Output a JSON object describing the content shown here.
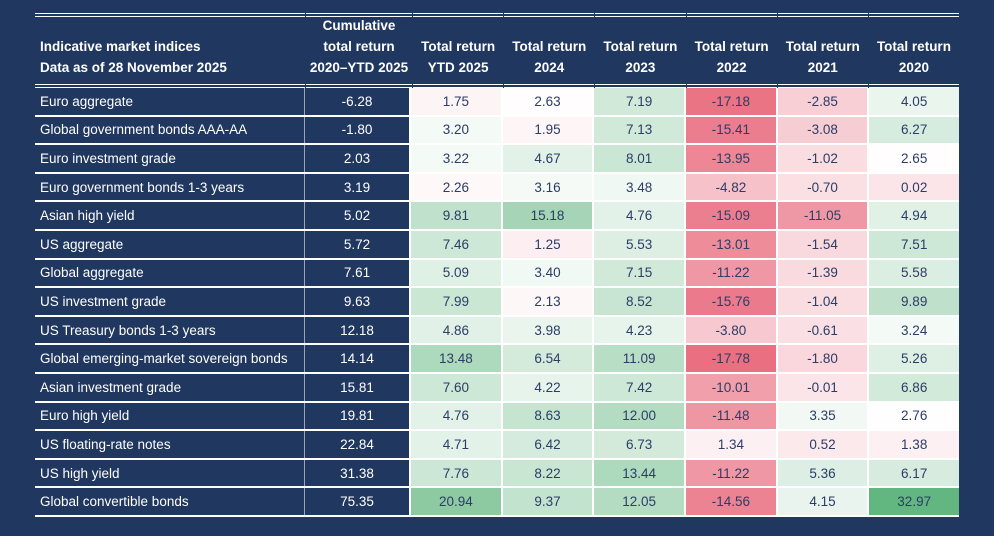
{
  "header": {
    "rowhead_line1": "Indicative market indices",
    "rowhead_line2": "Data as of 28 November 2025",
    "value_columns": [
      {
        "lines": [
          "Cumulative",
          "total return",
          "2020–YTD 2025"
        ]
      },
      {
        "lines": [
          "Total return",
          "YTD 2025"
        ]
      },
      {
        "lines": [
          "Total return",
          "2024"
        ]
      },
      {
        "lines": [
          "Total return",
          "2023"
        ]
      },
      {
        "lines": [
          "Total return",
          "2022"
        ]
      },
      {
        "lines": [
          "Total return",
          "2021"
        ]
      },
      {
        "lines": [
          "Total return",
          "2020"
        ]
      }
    ]
  },
  "rows": [
    {
      "label": "Euro aggregate",
      "cumulative": "-6.28",
      "returns": [
        "1.75",
        "2.63",
        "7.19",
        "-17.18",
        "-2.85",
        "4.05"
      ]
    },
    {
      "label": "Global government bonds AAA-AA",
      "cumulative": "-1.80",
      "returns": [
        "3.20",
        "1.95",
        "7.13",
        "-15.41",
        "-3.08",
        "6.27"
      ]
    },
    {
      "label": "Euro investment grade",
      "cumulative": "2.03",
      "returns": [
        "3.22",
        "4.67",
        "8.01",
        "-13.95",
        "-1.02",
        "2.65"
      ]
    },
    {
      "label": "Euro government bonds 1-3 years",
      "cumulative": "3.19",
      "returns": [
        "2.26",
        "3.16",
        "3.48",
        "-4.82",
        "-0.70",
        "0.02"
      ]
    },
    {
      "label": "Asian high yield",
      "cumulative": "5.02",
      "returns": [
        "9.81",
        "15.18",
        "4.76",
        "-15.09",
        "-11.05",
        "4.94"
      ]
    },
    {
      "label": "US aggregate",
      "cumulative": "5.72",
      "returns": [
        "7.46",
        "1.25",
        "5.53",
        "-13.01",
        "-1.54",
        "7.51"
      ]
    },
    {
      "label": "Global aggregate",
      "cumulative": "7.61",
      "returns": [
        "5.09",
        "3.40",
        "7.15",
        "-11.22",
        "-1.39",
        "5.58"
      ]
    },
    {
      "label": "US investment grade",
      "cumulative": "9.63",
      "returns": [
        "7.99",
        "2.13",
        "8.52",
        "-15.76",
        "-1.04",
        "9.89"
      ]
    },
    {
      "label": "US Treasury bonds 1-3 years",
      "cumulative": "12.18",
      "returns": [
        "4.86",
        "3.98",
        "4.23",
        "-3.80",
        "-0.61",
        "3.24"
      ]
    },
    {
      "label": "Global emerging-market sovereign bonds",
      "cumulative": "14.14",
      "returns": [
        "13.48",
        "6.54",
        "11.09",
        "-17.78",
        "-1.80",
        "5.26"
      ]
    },
    {
      "label": "Asian investment grade",
      "cumulative": "15.81",
      "returns": [
        "7.60",
        "4.22",
        "7.42",
        "-10.01",
        "-0.01",
        "6.86"
      ]
    },
    {
      "label": "Euro high yield",
      "cumulative": "19.81",
      "returns": [
        "4.76",
        "8.63",
        "12.00",
        "-11.48",
        "3.35",
        "2.76"
      ]
    },
    {
      "label": "US floating-rate notes",
      "cumulative": "22.84",
      "returns": [
        "4.71",
        "6.42",
        "6.73",
        "1.34",
        "0.52",
        "1.38"
      ]
    },
    {
      "label": "US high yield",
      "cumulative": "31.38",
      "returns": [
        "7.76",
        "8.22",
        "13.44",
        "-11.22",
        "5.36",
        "6.17"
      ]
    },
    {
      "label": "Global convertible bonds",
      "cumulative": "75.35",
      "returns": [
        "20.94",
        "9.37",
        "12.05",
        "-14.56",
        "4.15",
        "32.97"
      ]
    }
  ],
  "colors": {
    "background_navy": "#203760",
    "header_text": "#ffffff",
    "cell_text": "#2b3d66",
    "grid_line": "#ffffff",
    "scale": {
      "negative": "#e96e80",
      "mid": "#ffffff",
      "positive": "#62b680",
      "white_point": 2.8,
      "min": -18,
      "max": 33,
      "red_gamma": 0.85,
      "green_gamma": 0.62
    }
  },
  "chart_data": {
    "type": "heatmap",
    "title": "Indicative market indices",
    "subtitle": "Data as of 28 November 2025",
    "columns": [
      "Cumulative total return 2020–YTD 2025",
      "Total return YTD 2025",
      "Total return 2024",
      "Total return 2023",
      "Total return 2022",
      "Total return 2021",
      "Total return 2020"
    ],
    "rows": [
      "Euro aggregate",
      "Global government bonds AAA-AA",
      "Euro investment grade",
      "Euro government bonds 1-3 years",
      "Asian high yield",
      "US aggregate",
      "Global aggregate",
      "US investment grade",
      "US Treasury bonds 1-3 years",
      "Global emerging-market sovereign bonds",
      "Asian investment grade",
      "Euro high yield",
      "US floating-rate notes",
      "US high yield",
      "Global convertible bonds"
    ],
    "values": [
      [
        -6.28,
        1.75,
        2.63,
        7.19,
        -17.18,
        -2.85,
        4.05
      ],
      [
        -1.8,
        3.2,
        1.95,
        7.13,
        -15.41,
        -3.08,
        6.27
      ],
      [
        2.03,
        3.22,
        4.67,
        8.01,
        -13.95,
        -1.02,
        2.65
      ],
      [
        3.19,
        2.26,
        3.16,
        3.48,
        -4.82,
        -0.7,
        0.02
      ],
      [
        5.02,
        9.81,
        15.18,
        4.76,
        -15.09,
        -11.05,
        4.94
      ],
      [
        5.72,
        7.46,
        1.25,
        5.53,
        -13.01,
        -1.54,
        7.51
      ],
      [
        7.61,
        5.09,
        3.4,
        7.15,
        -11.22,
        -1.39,
        5.58
      ],
      [
        9.63,
        7.99,
        2.13,
        8.52,
        -15.76,
        -1.04,
        9.89
      ],
      [
        12.18,
        4.86,
        3.98,
        4.23,
        -3.8,
        -0.61,
        3.24
      ],
      [
        14.14,
        13.48,
        6.54,
        11.09,
        -17.78,
        -1.8,
        5.26
      ],
      [
        15.81,
        7.6,
        4.22,
        7.42,
        -10.01,
        -0.01,
        6.86
      ],
      [
        19.81,
        4.76,
        8.63,
        12.0,
        -11.48,
        3.35,
        2.76
      ],
      [
        22.84,
        4.71,
        6.42,
        6.73,
        1.34,
        0.52,
        1.38
      ],
      [
        31.38,
        7.76,
        8.22,
        13.44,
        -11.22,
        5.36,
        6.17
      ],
      [
        75.35,
        20.94,
        9.37,
        12.05,
        -14.56,
        4.15,
        32.97
      ]
    ],
    "layout": {
      "legend": "none",
      "grid": "white separators",
      "note": "First column (cumulative) shown on navy without heatmap shading; return columns use diverging red-white-green conditional formatting"
    }
  }
}
